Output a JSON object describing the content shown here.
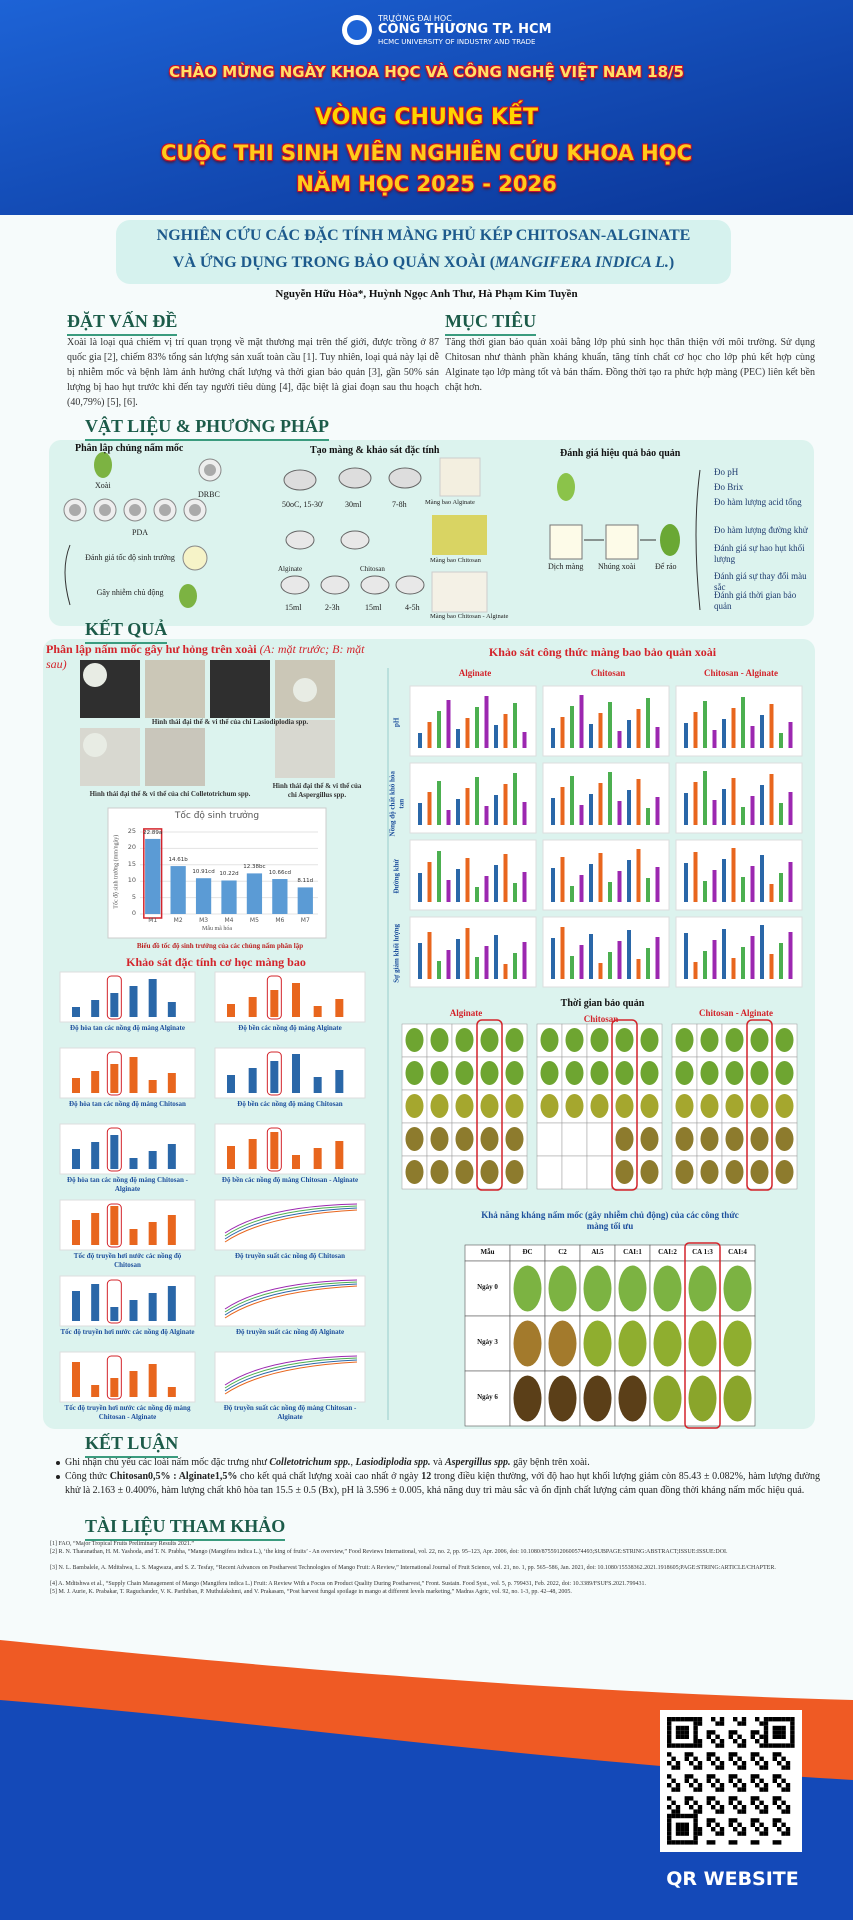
{
  "header": {
    "school_small": "TRƯỜNG ĐẠI HỌC",
    "school": "CÔNG THƯƠNG TP. HCM",
    "school_en": "HCMC UNIVERSITY OF INDUSTRY AND TRADE",
    "welcome": "CHÀO MỪNG NGÀY KHOA HỌC VÀ CÔNG NGHỆ VIỆT NAM 18/5",
    "round": "VÒNG CHUNG KẾT",
    "contest": "CUỘC THI SINH VIÊN NGHIÊN CỨU KHOA HỌC",
    "year": "NĂM HỌC 2025 - 2026"
  },
  "title": {
    "line1": "NGHIÊN CỨU CÁC ĐẶC TÍNH MÀNG PHỦ KÉP CHITOSAN-ALGINATE",
    "line2": [
      "VÀ ỨNG DỤNG TRONG BẢO QUẢN XOÀI (",
      "MANGIFERA INDICA L.",
      ")"
    ]
  },
  "authors": "Nguyễn Hữu Hòa*, Huỳnh Ngọc Anh Thư, Hà Phạm Kim Tuyền",
  "problem": {
    "heading": "ĐẶT VẤN ĐỀ",
    "text": "Xoài là loại quả chiếm vị trí quan trọng về mặt thương mại trên thế giới, được trồng ở 87 quốc gia [2], chiếm 83% tổng sản lượng sản xuất toàn cầu [1]. Tuy nhiên, loại quả này lại dễ bị nhiễm mốc và bệnh làm ảnh hưởng chất lượng và thời gian bảo quản [3], gần 50% sản lượng bị hao hụt trước khi đến tay người tiêu dùng [4], đặc biệt là giai đoạn sau thu hoạch (40,79%) [5], [6]."
  },
  "objective": {
    "heading": "MỤC TIÊU",
    "text": "Tăng thời gian bảo quản xoài bằng lớp phủ sinh học thân thiện với môi trường. Sử dụng Chitosan như thành phần kháng khuẩn, tăng tính chất cơ học cho lớp phủ kết hợp cùng Alginate tạo lớp màng tốt và bán thấm. Đồng thời tạo ra phức hợp màng (PEC) liên kết bền chặt hơn."
  },
  "methods": {
    "heading": "VẬT LIỆU & PHƯƠNG PHÁP",
    "isolation": {
      "title": "Phân lập chủng nấm mốc",
      "mango": "Xoài",
      "drbc": "DRBC",
      "pda": "PDA",
      "growth": "Đánh giá tốc độ sinh trưởng",
      "infection": "Gây nhiễm chủ động"
    },
    "film": {
      "title": "Tạo màng & khảo sát đặc tính",
      "cond": "50oC, 15-30'",
      "v30": "30ml",
      "t78": "7-8h",
      "alg_film": "Màng bao Alginate",
      "chi_film": "Màng bao Chitosan",
      "alg": "Alginate",
      "chi": "Chitosan",
      "v15a": "15ml",
      "t23": "2-3h",
      "v15b": "15ml",
      "t45": "4-5h",
      "ca_film": "Màng bao Chitosan - Alginate"
    },
    "eval": {
      "title": "Đánh giá hiệu quả bảo quản",
      "steps": [
        "Dịch màng",
        "Nhúng xoài",
        "Để ráo"
      ],
      "tests": [
        "Đo pH",
        "Đo Brix",
        "Đo hàm lượng acid tổng",
        "Đo hàm lượng đường khử",
        "Đánh giá sự hao hụt khối lượng",
        "Đánh giá sự thay đổi màu sắc",
        "Đánh giá thời gian bảo quản"
      ]
    }
  },
  "results": {
    "heading": "KẾT QUẢ",
    "isolation_title": [
      "Phân lập nấm mốc gây hư hỏng trên xoài ",
      "(A: mặt trước; B: mặt sau)"
    ],
    "captions": [
      "Hình thái đại thể & vi thể của chi Lasiodiplodia spp.",
      "Hình thái đại thể & vi thể của chi Colletotrichum spp.",
      "Hình thái đại thể & vi thể của chi Aspergillus spp."
    ],
    "chart_caption": "Biểu đồ tốc độ sinh trưởng của các chủng nấm phân lập",
    "mech_title": "Khảo sát đặc tính cơ học màng bao",
    "mech_captions": [
      [
        "Độ hòa tan các nồng độ màng Alginate",
        "Độ bền các nồng độ màng Alginate"
      ],
      [
        "Độ hòa tan các nồng độ màng Chitosan",
        "Độ bền các nồng độ màng Chitosan"
      ],
      [
        "Độ hòa tan các nồng độ màng Chitosan - Alginate",
        "Độ bền các nồng độ màng Chitosan - Alginate"
      ],
      [
        "Tốc độ truyền hơi nước các nồng độ Chitosan",
        "Độ truyền suất các nồng độ Chitosan"
      ],
      [
        "Tốc độ truyền hơi nước các nồng độ Alginate",
        "Độ truyền suất các nồng độ Alginate"
      ],
      [
        "Tốc độ truyền hơi nước các nồng độ màng Chitosan - Alginate",
        "Độ truyền suất các nồng độ màng Chitosan - Alginate"
      ]
    ],
    "formula_title": "Khảo sát công thức màng bao bảo quản xoài",
    "formula_cols": [
      "Alginate",
      "Chitosan",
      "Chitosan - Alginate"
    ],
    "formula_rows": [
      "pH",
      "Nồng độ chất khô hòa tan",
      "Đường khử",
      "Sự giảm khối lượng"
    ],
    "storage_title": "Thời gian bảo quản",
    "storage_cols": [
      "Alginate",
      "Chitosan",
      "Chitosan - Alginate"
    ],
    "antifungal_title": "Khả năng kháng nấm mốc (gây nhiễm chủ động) của các công thức màng tối ưu",
    "table": {
      "header": [
        "Mẫu",
        "ĐC",
        "C2",
        "Al.5",
        "CAI:1",
        "CAI:2",
        "CA 1:3",
        "CAI:4"
      ],
      "rows": [
        "Ngày 0",
        "Ngày 3",
        "Ngày 6"
      ]
    }
  },
  "chart_data": {
    "type": "bar",
    "title": "Tốc độ sinh trưởng",
    "x_label": "Mẫu mã hóa",
    "y_label": "Tốc độ sinh trưởng (mm/ngày)",
    "categories": [
      "M1",
      "M2",
      "M3",
      "M4",
      "M5",
      "M6",
      "M7"
    ],
    "values": [
      22.89,
      14.61,
      10.91,
      10.22,
      12.38,
      10.66,
      8.11
    ],
    "value_labels": [
      "22.89a",
      "14.61b",
      "10.91cd",
      "10.22d",
      "12.38bc",
      "10.66cd",
      "8.11d"
    ],
    "color": "#5b9bd5",
    "ylim": [
      0,
      25
    ],
    "yticks": [
      0,
      5,
      10,
      15,
      20,
      25
    ],
    "grid": true
  },
  "conclusion": {
    "heading": "KẾT LUẬN",
    "bullets": [
      [
        "Ghi nhận chủ yếu các loài nấm mốc đặc trưng như ",
        "Colletotrichum spp.",
        ", ",
        "Lasiodiplodia spp.",
        "  và ",
        "Aspergillus spp.",
        " gây bệnh trên xoài."
      ],
      [
        "Công thức ",
        "Chitosan0,5% : Alginate1,5%",
        " cho kết quả chất lượng xoài cao nhất ở ngày ",
        "12",
        " trong điều kiện thường, với độ hao hụt khối lượng giảm còn 85.43 ± 0.082%, hàm lượng đường khử là 2.163 ± 0.400%, hàm lượng chất khô hòa tan 15.5 ± 0.5 (Bx), pH là 3.596 ± 0.005, khả năng duy trì màu sắc và ổn định chất lượng cảm quan đồng thời kháng nấm mốc hiệu quả."
      ]
    ]
  },
  "references": {
    "heading": "TÀI LIỆU THAM KHẢO",
    "items": [
      "[1] FAO, “Major Tropical Fruits Preliminary Results 2021.”",
      "[2] R. N. Tharanathan, H. M. Yashoda, and T. N. Prabha, “Mango (Mangifera indica L.), ‘the king of fruits’ - An overview,” Food Reviews International, vol. 22, no. 2, pp. 95–123, Apr. 2006, doi: 10.1080/87559120600574493;SUBPAGE:STRING:ABSTRACT;ISSUE:ISSUE:DOI.",
      "[3] N. L. Bambalele, A. Mditshwa, L. S. Magwaza, and S. Z. Tesfay, “Recent Advances on Postharvest Technologies of Mango Fruit: A Review,” International Journal of Fruit Science, vol. 21, no. 1, pp. 565–586, Jan. 2021, doi: 10.1080/15538362.2021.1918605;PAGE:STRING:ARTICLE/CHAPTER.",
      "[4] A. Mditshwa et al., “Supply Chain Management of Mango (Mangifera indica L.) Fruit: A Review With a Focus on Product Quality During Postharvest,” Front. Sustain. Food Syst., vol. 5, p. 799431, Feb. 2022, doi: 10.3389/FSUFS.2021.799431.",
      "[5] M. J. Aurie, K. Prabakar, T. Raguchander, V. K. Parthiban, P. Muthulakshmi, and V. Prakasam, “Post harvest fungal spoilage in mango at different levels marketing,” Madras Agric, vol. 92, no. 1-3, pp. 42–48, 2005."
    ]
  },
  "qr_label": "QR WEBSITE"
}
